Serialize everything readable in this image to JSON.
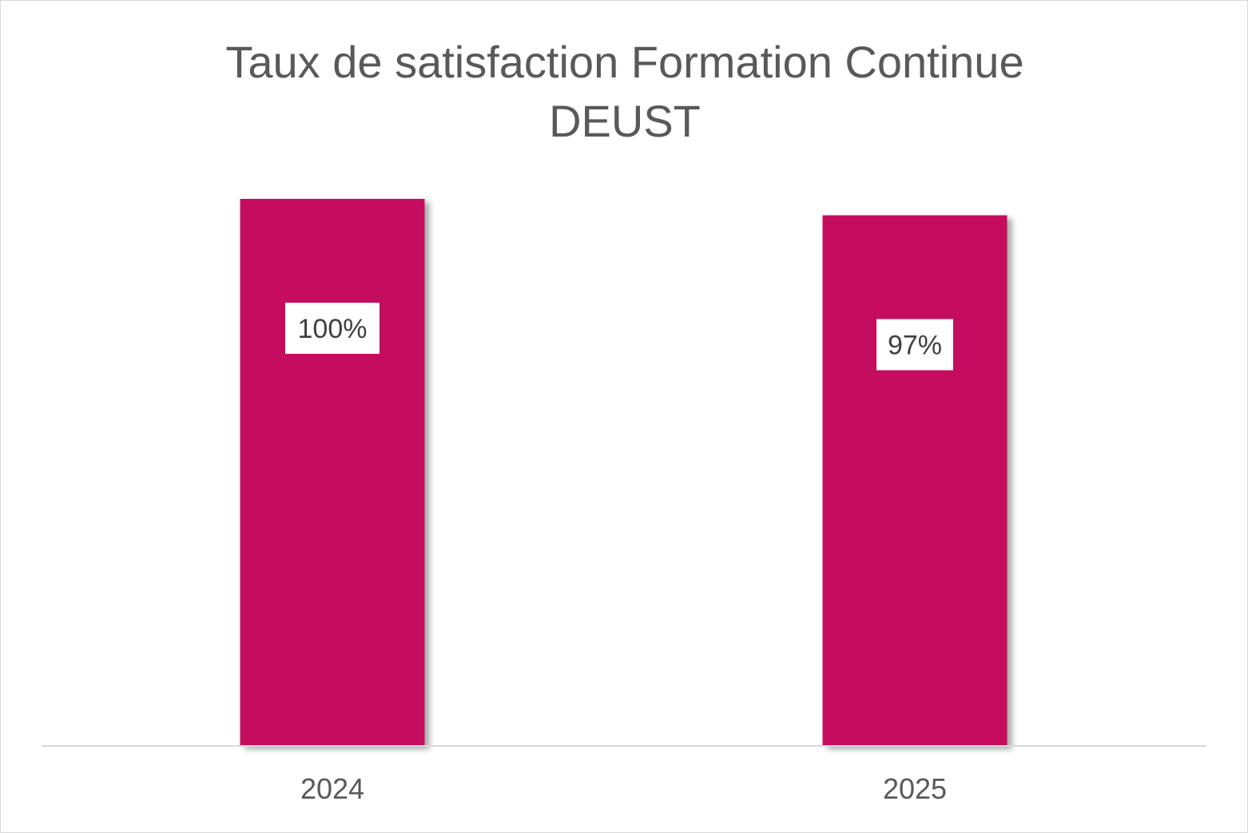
{
  "chart_data": {
    "type": "bar",
    "title_lines": [
      "Taux de satisfaction Formation Continue",
      "DEUST"
    ],
    "categories": [
      "2024",
      "2025"
    ],
    "values": [
      100,
      97
    ],
    "data_labels": [
      "100%",
      "97%"
    ],
    "ylim": [
      0,
      100
    ],
    "grid": false,
    "legend": "none",
    "bar_color": "#c5095e",
    "axis_color": "#d9d9d9",
    "text_color": "#595959"
  }
}
